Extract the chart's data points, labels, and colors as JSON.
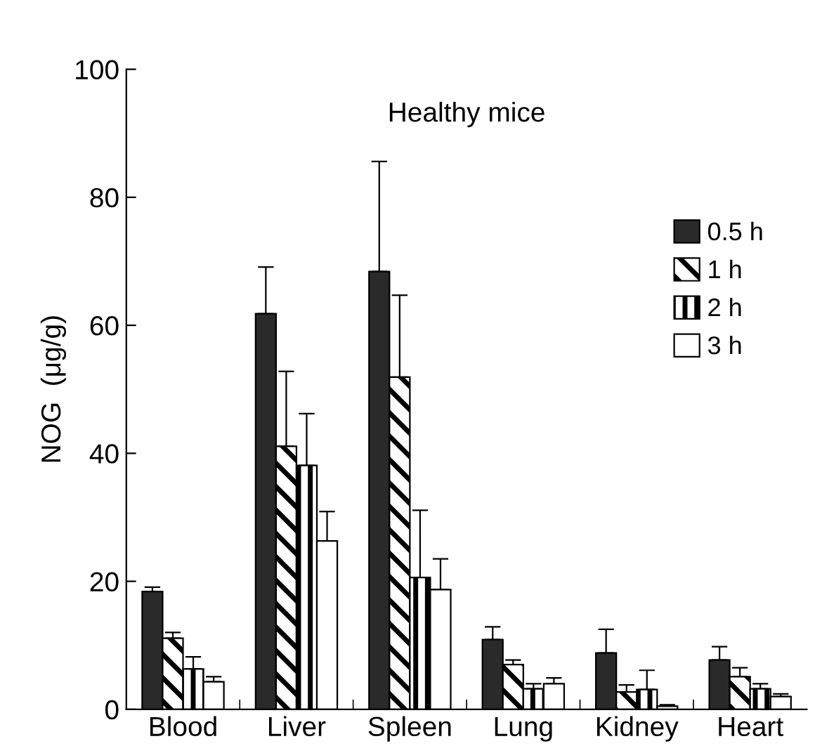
{
  "chart_data": {
    "type": "bar",
    "title": "Healthy mice",
    "ylabel": "NOG  (μg/g)",
    "categories": [
      "Blood",
      "Liver",
      "Spleen",
      "Lung",
      "Kidney",
      "Heart"
    ],
    "series": [
      {
        "name": "0.5 h",
        "color": "#2a2a2a",
        "values": [
          18.4,
          61.8,
          68.4,
          10.9,
          8.8,
          7.7
        ],
        "errors": [
          [
            18.4,
            19.1
          ],
          [
            61.8,
            69.1
          ],
          [
            68.4,
            85.6
          ],
          [
            10.9,
            12.9
          ],
          [
            8.8,
            12.5
          ],
          [
            7.7,
            9.8
          ]
        ]
      },
      {
        "name": "1 h",
        "color": "#ffffff",
        "values": [
          11.1,
          41.1,
          51.9,
          7.0,
          2.7,
          5.1
        ],
        "errors": [
          [
            11.1,
            12.0
          ],
          [
            41.1,
            52.8
          ],
          [
            51.9,
            64.7
          ],
          [
            7.0,
            7.7
          ],
          [
            2.7,
            3.8
          ],
          [
            5.1,
            6.5
          ]
        ]
      },
      {
        "name": "2 h",
        "color": "#ffffff",
        "values": [
          6.3,
          38.1,
          20.6,
          3.2,
          3.1,
          3.2
        ],
        "errors": [
          [
            6.3,
            8.2
          ],
          [
            38.1,
            46.2
          ],
          [
            20.6,
            31.1
          ],
          [
            3.2,
            4.0
          ],
          [
            3.1,
            6.1
          ],
          [
            3.2,
            4.0
          ]
        ]
      },
      {
        "name": "3 h",
        "color": "#ffffff",
        "values": [
          4.3,
          26.3,
          18.7,
          4.0,
          0.5,
          2.0
        ],
        "errors": [
          [
            4.3,
            5.1
          ],
          [
            26.3,
            30.9
          ],
          [
            18.7,
            23.5
          ],
          [
            4.0,
            4.9
          ],
          [
            0.5,
            0.7
          ],
          [
            2.0,
            2.4
          ]
        ]
      }
    ],
    "ylim": [
      0,
      100
    ],
    "yticks": [
      0,
      20,
      40,
      60,
      80,
      100
    ],
    "grid": false,
    "legend": "top right"
  }
}
